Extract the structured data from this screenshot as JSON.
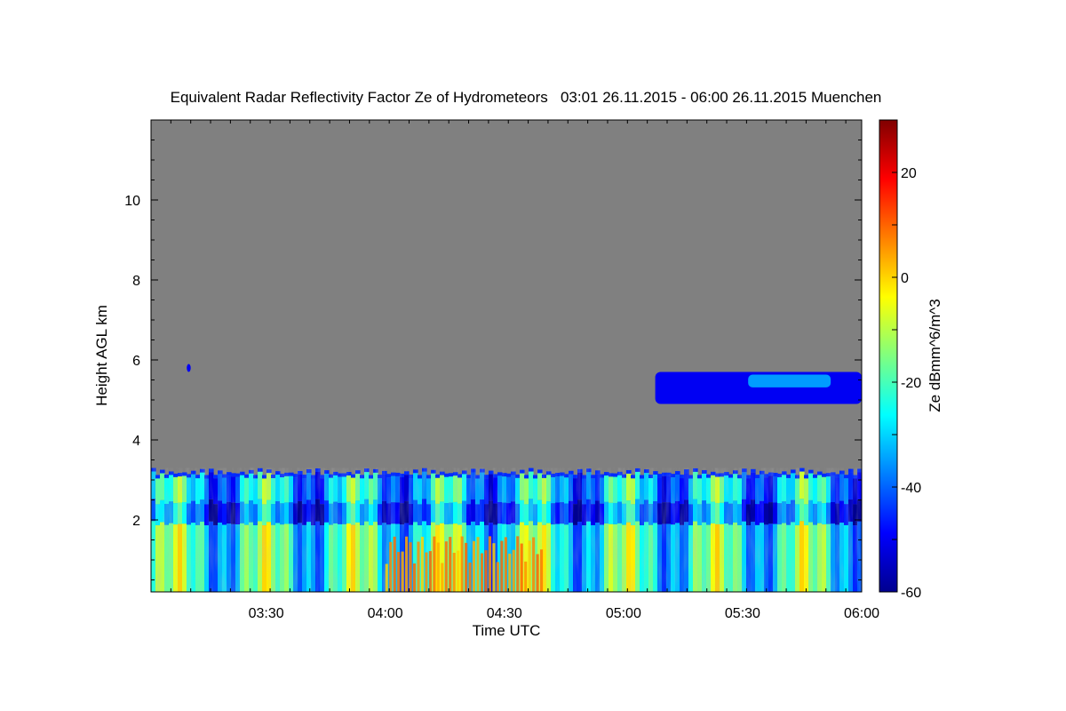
{
  "chart_data": {
    "type": "heatmap",
    "title": "Equivalent Radar Reflectivity Factor Ze of Hydrometeors   03:01 26.11.2015 - 06:00 26.11.2015 Muenchen",
    "xlabel": "Time UTC",
    "ylabel": "Height AGL km",
    "colorbar_label": "Ze dBmm^6/m^3",
    "xlim_minutes": [
      181,
      360
    ],
    "ylim_km": [
      0.2,
      12.0
    ],
    "x_ticks": [
      {
        "label": "03:30",
        "minutes": 210
      },
      {
        "label": "04:00",
        "minutes": 240
      },
      {
        "label": "04:30",
        "minutes": 270
      },
      {
        "label": "05:00",
        "minutes": 300
      },
      {
        "label": "05:30",
        "minutes": 330
      },
      {
        "label": "06:00",
        "minutes": 360
      }
    ],
    "y_ticks": [
      {
        "label": "2",
        "km": 2
      },
      {
        "label": "4",
        "km": 4
      },
      {
        "label": "6",
        "km": 6
      },
      {
        "label": "8",
        "km": 8
      },
      {
        "label": "10",
        "km": 10
      }
    ],
    "colorbar": {
      "range": [
        -60,
        30
      ],
      "colormap": "jet",
      "ticks": [
        {
          "label": "20",
          "value": 20
        },
        {
          "label": "0",
          "value": 0
        },
        {
          "label": "-20",
          "value": -20
        },
        {
          "label": "-40",
          "value": -40
        },
        {
          "label": "-60",
          "value": -60
        }
      ]
    },
    "background_color": "#808080",
    "echo_features": [
      {
        "feature": "low precipitation layer",
        "time_range": [
          "03:01",
          "06:00"
        ],
        "height_range_km": [
          0.2,
          3.3
        ],
        "ze_range_dbz": [
          -50,
          10
        ]
      },
      {
        "feature": "high reflectivity cores",
        "time_range": [
          "04:00",
          "04:40"
        ],
        "height_range_km": [
          0.2,
          1.6
        ],
        "ze_range_dbz": [
          0,
          10
        ]
      },
      {
        "feature": "upper cloud band",
        "time_range": [
          "05:08",
          "06:00"
        ],
        "height_range_km": [
          4.9,
          5.7
        ],
        "ze_range_dbz": [
          -50,
          -35
        ]
      },
      {
        "feature": "small echo",
        "time_range": [
          "03:10",
          "03:11"
        ],
        "height_range_km": [
          5.7,
          5.9
        ],
        "ze_range_dbz": [
          -50,
          -45
        ]
      }
    ]
  }
}
